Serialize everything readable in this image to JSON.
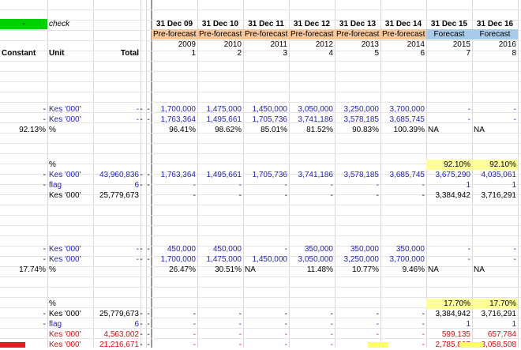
{
  "header": {
    "check_dash": "-",
    "check_label": "check",
    "dates": [
      "31 Dec 09",
      "31 Dec 10",
      "31 Dec 11",
      "31 Dec 12",
      "31 Dec 13",
      "31 Dec 14",
      "31 Dec 15",
      "31 Dec 16"
    ],
    "phases": [
      "Pre-forecast",
      "Pre-forecast",
      "Pre-forecast",
      "Pre-forecast",
      "Pre-forecast",
      "Pre-forecast",
      "Forecast",
      "Forecast"
    ],
    "years": [
      "2009",
      "2010",
      "2011",
      "2012",
      "2013",
      "2014",
      "2015",
      "2016"
    ],
    "idx": [
      "1",
      "2",
      "3",
      "4",
      "5",
      "6",
      "7",
      "8"
    ],
    "constant": "Constant",
    "unit": "Unit",
    "total": "Total"
  },
  "rows": [
    {
      "y": 132,
      "c": "-",
      "unit": "Kes '000'",
      "total": "-",
      "m1": "-",
      "m2": "-",
      "vals": [
        "1,700,000",
        "1,475,000",
        "1,450,000",
        "3,050,000",
        "3,250,000",
        "3,700,000",
        "-",
        "-"
      ],
      "color": "blue",
      "hl": ""
    },
    {
      "y": 145,
      "c": "-",
      "unit": "Kes '000'",
      "total": "-",
      "m1": "-",
      "m2": "-",
      "vals": [
        "1,763,364",
        "1,495,661",
        "1,705,736",
        "3,741,186",
        "3,578,185",
        "3,685,745",
        "-",
        "-"
      ],
      "color": "blue",
      "hl": ""
    },
    {
      "y": 158,
      "c": "92.13%",
      "unit": "%",
      "total": "",
      "m1": "",
      "m2": "",
      "vals": [
        "96.41%",
        "98.62%",
        "85.01%",
        "81.52%",
        "90.83%",
        "100.39%",
        "NA",
        "NA"
      ],
      "color": "",
      "hl": ""
    },
    {
      "y": 202,
      "c": "",
      "unit": "%",
      "total": "",
      "m1": "",
      "m2": "",
      "vals": [
        "",
        "",
        "",
        "",
        "",
        "",
        "92.10%",
        "92.10%"
      ],
      "color": "",
      "hl": "yellow"
    },
    {
      "y": 215,
      "c": "-",
      "unit": "Kes '000'",
      "total": "43,960,836",
      "m1": "-",
      "m2": "-",
      "vals": [
        "1,763,364",
        "1,495,661",
        "1,705,736",
        "3,741,186",
        "3,578,185",
        "3,685,745",
        "3,675,290",
        "4,035,061"
      ],
      "color": "blue",
      "hl": ""
    },
    {
      "y": 228,
      "c": "-",
      "unit": "flag",
      "total": "6",
      "m1": "-",
      "m2": "-",
      "vals": [
        "-",
        "-",
        "-",
        "-",
        "-",
        "-",
        "1",
        "1"
      ],
      "color": "blue",
      "hl": ""
    },
    {
      "y": 241,
      "c": "",
      "unit": "Kes '000'",
      "total": "25,779,673",
      "m1": "",
      "m2": "",
      "vals": [
        "-",
        "-",
        "-",
        "-",
        "-",
        "-",
        "3,384,942",
        "3,716,291"
      ],
      "color": "",
      "hl": ""
    },
    {
      "y": 309,
      "c": "-",
      "unit": "Kes '000'",
      "total": "-",
      "m1": "-",
      "m2": "-",
      "vals": [
        "450,000",
        "450,000",
        "-",
        "350,000",
        "350,000",
        "350,000",
        "-",
        "-"
      ],
      "color": "blue",
      "hl": ""
    },
    {
      "y": 322,
      "c": "-",
      "unit": "Kes '000'",
      "total": "-",
      "m1": "-",
      "m2": "-",
      "vals": [
        "1,700,000",
        "1,475,000",
        "1,450,000",
        "3,050,000",
        "3,250,000",
        "3,700,000",
        "-",
        "-"
      ],
      "color": "blue",
      "hl": ""
    },
    {
      "y": 335,
      "c": "17.74%",
      "unit": "%",
      "total": "",
      "m1": "",
      "m2": "",
      "vals": [
        "26.47%",
        "30.51%",
        "NA",
        "11.48%",
        "10.77%",
        "9.46%",
        "NA",
        "NA"
      ],
      "color": "",
      "hl": ""
    },
    {
      "y": 378,
      "c": "",
      "unit": "%",
      "total": "",
      "m1": "",
      "m2": "",
      "vals": [
        "",
        "",
        "",
        "",
        "",
        "",
        "17.70%",
        "17.70%"
      ],
      "color": "",
      "hl": "yellow"
    },
    {
      "y": 391,
      "c": "-",
      "unit": "Kes '000'",
      "total": "25,779,673",
      "m1": "-",
      "m2": "-",
      "vals": [
        "-",
        "-",
        "-",
        "-",
        "-",
        "-",
        "3,384,942",
        "3,716,291"
      ],
      "color": "",
      "hl": ""
    },
    {
      "y": 404,
      "c": "-",
      "unit": "flag",
      "total": "6",
      "m1": "-",
      "m2": "-",
      "vals": [
        "-",
        "-",
        "-",
        "-",
        "-",
        "-",
        "1",
        "1"
      ],
      "color": "blue",
      "hl": ""
    },
    {
      "y": 417,
      "c": "",
      "unit": "Kes '000'",
      "total": "4,563,002",
      "m1": "-",
      "m2": "-",
      "vals": [
        "-",
        "-",
        "-",
        "-",
        "-",
        "-",
        "599,135",
        "657,784"
      ],
      "color": "red",
      "hl": ""
    },
    {
      "y": 430,
      "c": "",
      "unit": "Kes '000'",
      "total": "21,216,671",
      "m1": "-",
      "m2": "-",
      "vals": [
        "-",
        "-",
        "-",
        "-",
        "-",
        "-",
        "2,785,807",
        "3,058,508"
      ],
      "color": "red",
      "hl": ""
    }
  ],
  "colors": {
    "pre_forecast": "#f8c79b",
    "forecast": "#a9cbeb",
    "highlight": "#ffff99",
    "check": "#00d200",
    "input_blue": "#1f1fbf",
    "negative_red": "#d01010"
  }
}
